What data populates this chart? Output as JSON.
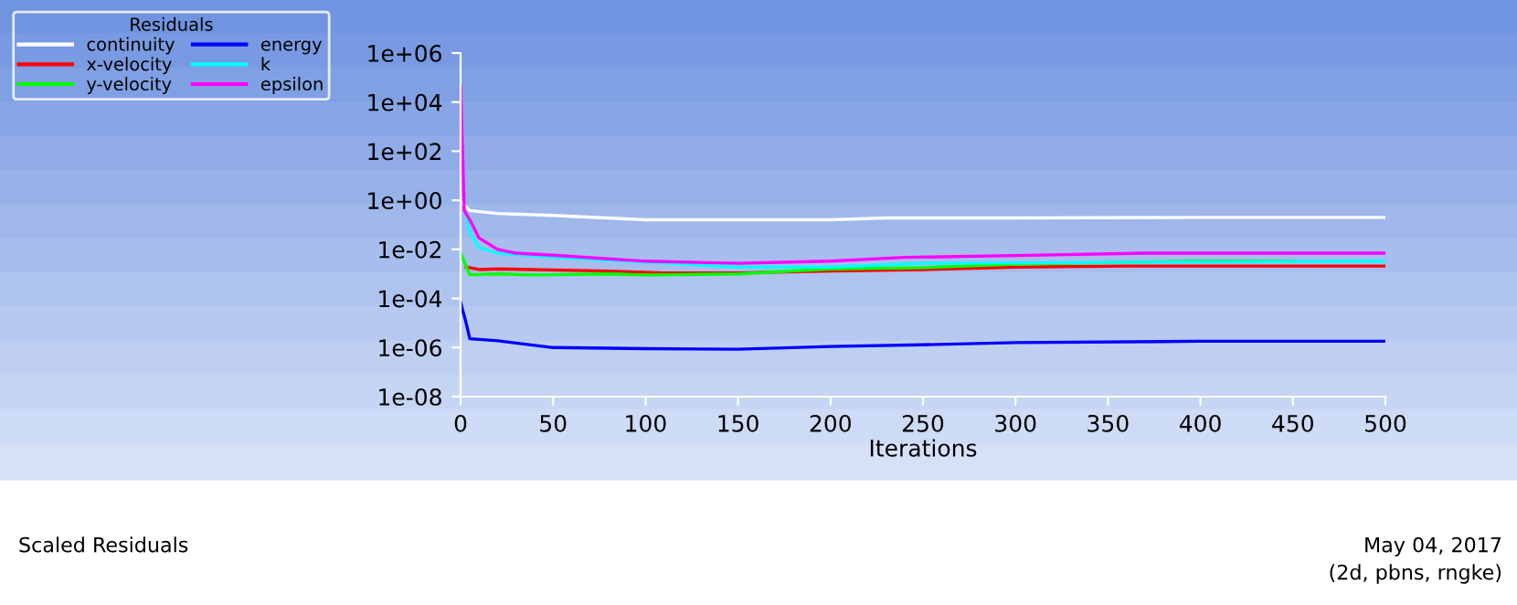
{
  "chart_data": {
    "type": "line",
    "xlabel": "Iterations",
    "legend_title": "Residuals",
    "legend": "top left",
    "log": "y",
    "grid": false,
    "xlim": [
      0,
      500
    ],
    "xticks": [
      0,
      50,
      100,
      150,
      200,
      250,
      300,
      350,
      400,
      450,
      500
    ],
    "ylim": [
      1e-08,
      1000000.0
    ],
    "yticks": [
      {
        "value": 1e-08,
        "label": "1e-08"
      },
      {
        "value": 1e-06,
        "label": "1e-06"
      },
      {
        "value": 0.0001,
        "label": "1e-04"
      },
      {
        "value": 0.01,
        "label": "1e-02"
      },
      {
        "value": 1,
        "label": "1e+00"
      },
      {
        "value": 100,
        "label": "1e+02"
      },
      {
        "value": 10000,
        "label": "1e+04"
      },
      {
        "value": 1000000,
        "label": "1e+06"
      }
    ],
    "annotations": [
      "Scaled Residuals",
      "May 04, 2017",
      "(2d, pbns, rngke)"
    ],
    "series": [
      {
        "name": "continuity",
        "color": "#ffffff",
        "x": [
          0,
          5,
          20,
          50,
          100,
          200,
          230,
          300,
          400,
          500
        ],
        "values": [
          0.9,
          0.38,
          0.29,
          0.24,
          0.16,
          0.16,
          0.19,
          0.19,
          0.2,
          0.2
        ]
      },
      {
        "name": "x-velocity",
        "color": "#ff0000",
        "x": [
          3,
          10,
          20,
          80,
          110,
          150,
          200,
          250,
          300,
          360,
          500
        ],
        "values": [
          0.0019,
          0.0015,
          0.0016,
          0.0013,
          0.0011,
          0.0011,
          0.0013,
          0.0015,
          0.0019,
          0.0021,
          0.0021
        ]
      },
      {
        "name": "y-velocity",
        "color": "#00ff00",
        "x": [
          0,
          5,
          20,
          40,
          80,
          100,
          150,
          200,
          250,
          300,
          400,
          450
        ],
        "values": [
          0.007,
          0.00093,
          0.001,
          0.0009,
          0.001,
          0.0009,
          0.001,
          0.0016,
          0.0018,
          0.0025,
          0.0033,
          0.0033
        ]
      },
      {
        "name": "energy",
        "color": "#0000ff",
        "x": [
          0,
          3,
          5,
          20,
          50,
          100,
          150,
          200,
          250,
          300,
          400,
          500
        ],
        "values": [
          7e-05,
          1e-05,
          2.3e-06,
          1.9e-06,
          1e-06,
          9e-07,
          8.5e-07,
          1.1e-06,
          1.3e-06,
          1.6e-06,
          1.8e-06,
          1.8e-06
        ]
      },
      {
        "name": "k",
        "color": "#00ffff",
        "x": [
          3,
          5,
          10,
          20,
          50,
          100,
          150,
          200,
          250,
          500
        ],
        "values": [
          0.29,
          0.05,
          0.012,
          0.007,
          0.0047,
          0.003,
          0.0019,
          0.0019,
          0.0027,
          0.0033
        ]
      },
      {
        "name": "epsilon",
        "color": "#ff00ff",
        "x": [
          0,
          2,
          5,
          10,
          20,
          30,
          50,
          100,
          150,
          200,
          240,
          300,
          370,
          500
        ],
        "values": [
          48000,
          0.38,
          0.16,
          0.029,
          0.01,
          0.007,
          0.0058,
          0.0033,
          0.0027,
          0.0033,
          0.0047,
          0.0056,
          0.007,
          0.007
        ]
      }
    ]
  }
}
